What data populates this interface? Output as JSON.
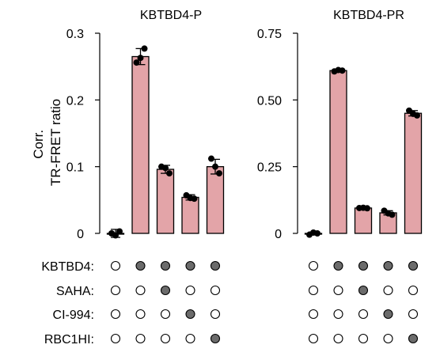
{
  "y_axis_title": [
    "Corr.",
    "TR-FRET ratio"
  ],
  "row_labels": [
    "KBTBD4:",
    "SAHA:",
    "CI-994:",
    "RBC1HI:"
  ],
  "matrix": [
    [
      0,
      1,
      1,
      1,
      1
    ],
    [
      0,
      0,
      1,
      0,
      0
    ],
    [
      0,
      0,
      0,
      1,
      0
    ],
    [
      0,
      0,
      0,
      0,
      1
    ]
  ],
  "colors": {
    "bar_fill": "#e3a4a8",
    "bar_stroke": "#000000",
    "filled_dot": "#6b6b6b"
  },
  "chart_data": [
    {
      "type": "bar",
      "title": "KBTBD4-P",
      "ylim": [
        0,
        0.3
      ],
      "yticks": [
        0,
        0.1,
        0.2,
        0.3
      ],
      "ytick_labels": [
        "0",
        "0.1",
        "0.2",
        "0.3"
      ],
      "values": [
        0.0,
        0.265,
        0.096,
        0.054,
        0.1
      ],
      "errors": [
        0.006,
        0.012,
        0.006,
        0.004,
        0.011
      ],
      "replicates": [
        [
          0.0,
          -0.003,
          0.003
        ],
        [
          0.256,
          0.263,
          0.277
        ],
        [
          0.1,
          0.098,
          0.09
        ],
        [
          0.057,
          0.053,
          0.052
        ],
        [
          0.112,
          0.1,
          0.09
        ]
      ]
    },
    {
      "type": "bar",
      "title": "KBTBD4-PR",
      "ylim": [
        0,
        0.75
      ],
      "yticks": [
        0,
        0.25,
        0.5,
        0.75
      ],
      "ytick_labels": [
        "0",
        "0.25",
        "0.50",
        "0.75"
      ],
      "values": [
        0.0,
        0.61,
        0.095,
        0.077,
        0.45
      ],
      "errors": [
        0.005,
        0.005,
        0.003,
        0.008,
        0.01
      ],
      "replicates": [
        [
          -0.005,
          0.003,
          0.0
        ],
        [
          0.607,
          0.612,
          0.61
        ],
        [
          0.095,
          0.096,
          0.094
        ],
        [
          0.085,
          0.075,
          0.07
        ],
        [
          0.46,
          0.448,
          0.442
        ]
      ]
    }
  ]
}
